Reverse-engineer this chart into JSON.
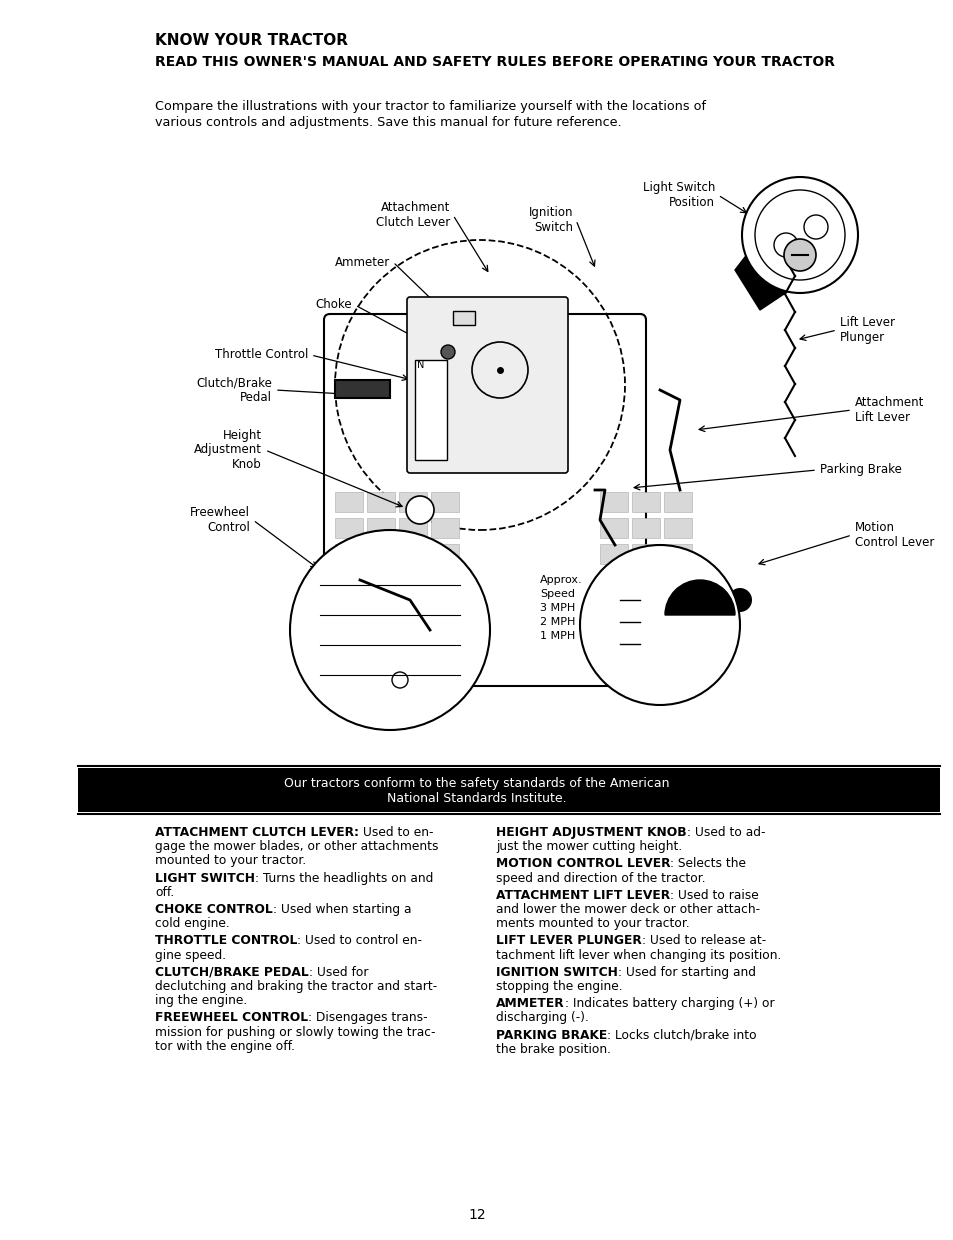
{
  "bg_color": "#ffffff",
  "title1": "KNOW YOUR TRACTOR",
  "title2": "READ THIS OWNER'S MANUAL AND SAFETY RULES BEFORE OPERATING YOUR TRACTOR",
  "intro_line1": "Compare the illustrations with your tractor to familiarize yourself with the locations of",
  "intro_line2": "various controls and adjustments. Save this manual for future reference.",
  "safety_line1": "Our tractors conform to the safety standards of the American",
  "safety_line2": "National Standards Institute.",
  "page_number": "12",
  "desc_left": [
    {
      "bold": "ATTACHMENT CLUTCH LEVER:",
      "normal": " Used to en-\ngage the mower blades, or other attachments\nmounted to your tractor."
    },
    {
      "bold": "LIGHT SWITCH",
      "normal": ": Turns the headlights on and\noff."
    },
    {
      "bold": "CHOKE CONTROL",
      "normal": ": Used when starting a\ncold engine."
    },
    {
      "bold": "THROTTLE CONTROL",
      "normal": ": Used to control en-\ngine speed."
    },
    {
      "bold": "CLUTCH/BRAKE PEDAL",
      "normal": ": Used for\ndeclutching and braking the tractor and start-\ning the engine."
    },
    {
      "bold": "FREEWHEEL CONTROL",
      "normal": ": Disengages trans-\nmission for pushing or slowly towing the trac-\ntor with the engine off."
    }
  ],
  "desc_right": [
    {
      "bold": "HEIGHT ADJUSTMENT KNOB",
      "normal": ": Used to ad-\njust the mower cutting height."
    },
    {
      "bold": "MOTION CONTROL LEVER",
      "normal": ": Selects the\nspeed and direction of the tractor."
    },
    {
      "bold": "ATTACHMENT LIFT LEVER",
      "normal": ": Used to raise\nand lower the mower deck or other attach-\nments mounted to your tractor."
    },
    {
      "bold": "LIFT LEVER PLUNGER",
      "normal": ": Used to release at-\ntachment lift lever when changing its position."
    },
    {
      "bold": "IGNITION SWITCH",
      "normal": ": Used for starting and\nstopping the engine."
    },
    {
      "bold": "AMMETER",
      "normal": ": Indicates battery charging (+) or\ndischarging (-)."
    },
    {
      "bold": "PARKING BRAKE",
      "normal": ": Locks clutch/brake into\nthe brake position."
    }
  ]
}
